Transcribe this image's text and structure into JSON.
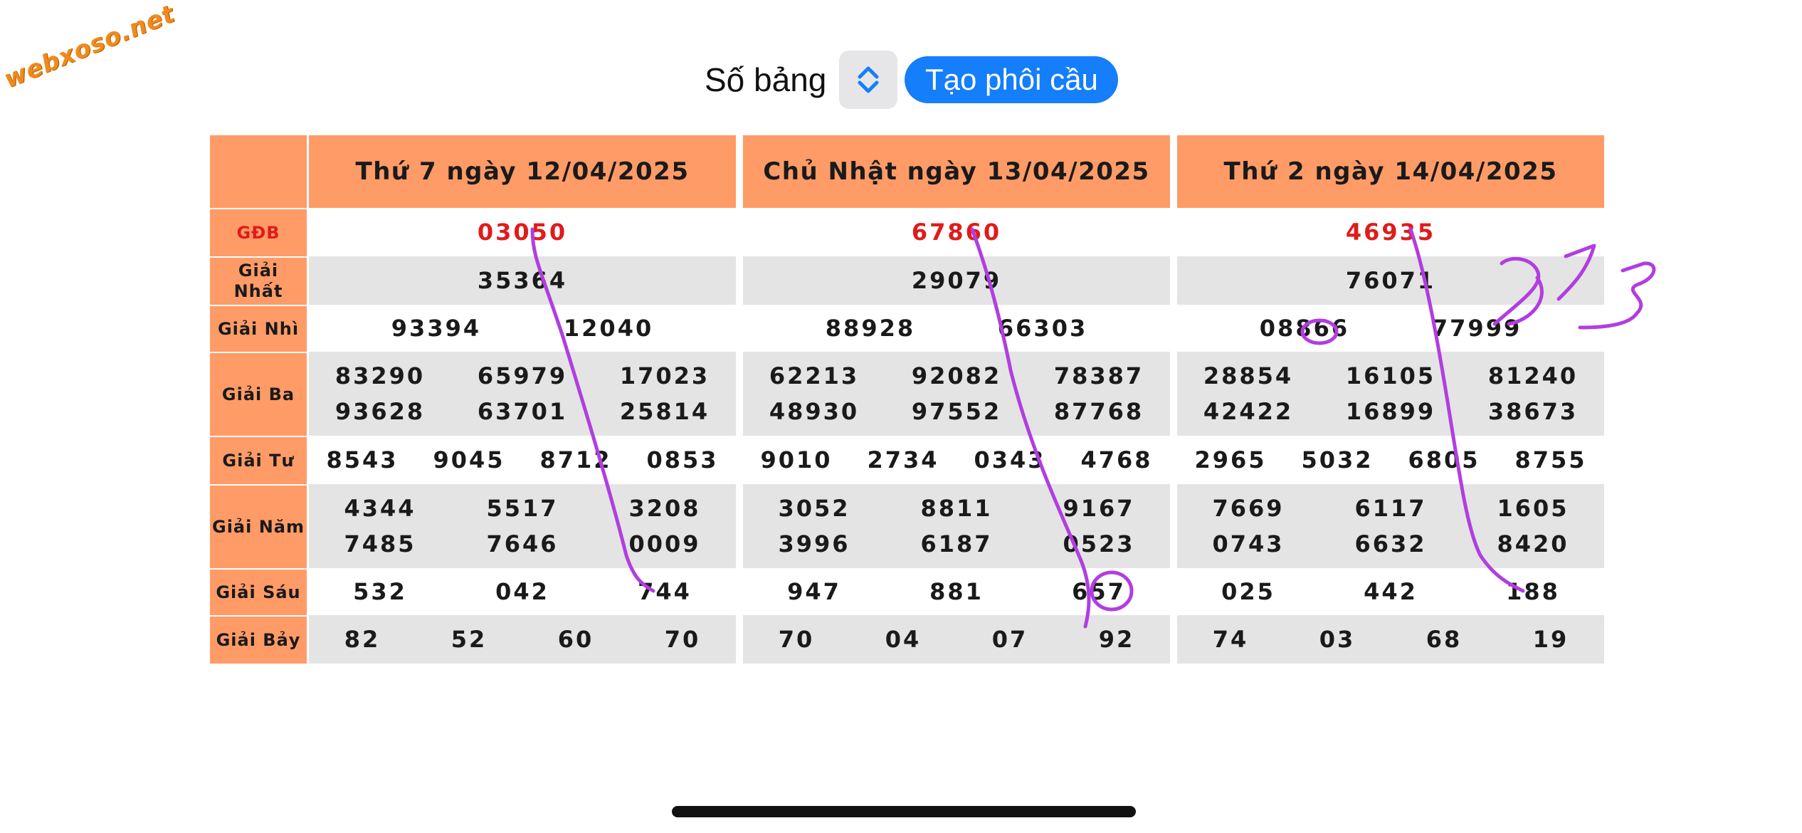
{
  "watermark": "webxoso.net",
  "controls": {
    "table_count_label": "Số bảng",
    "create_button_label": "Tạo phôi cầu"
  },
  "row_labels": [
    {
      "text": "GĐB"
    },
    {
      "text": "Giải\nNhất"
    },
    {
      "text": "Giải Nhì"
    },
    {
      "text": "Giải Ba"
    },
    {
      "text": "Giải Tư"
    },
    {
      "text": "Giải Năm"
    },
    {
      "text": "Giải Sáu"
    },
    {
      "text": "Giải Bảy"
    }
  ],
  "days": [
    {
      "title": "Thứ 7 ngày 12/04/2025",
      "gdb": [
        "03050"
      ],
      "nhat": [
        "35364"
      ],
      "nhi": [
        "93394",
        "12040"
      ],
      "ba": [
        [
          "83290",
          "65979",
          "17023"
        ],
        [
          "93628",
          "63701",
          "25814"
        ]
      ],
      "tu": [
        "8543",
        "9045",
        "8712",
        "0853"
      ],
      "nam": [
        [
          "4344",
          "5517",
          "3208"
        ],
        [
          "7485",
          "7646",
          "0009"
        ]
      ],
      "sau": [
        "532",
        "042",
        "744"
      ],
      "bay": [
        "82",
        "52",
        "60",
        "70"
      ]
    },
    {
      "title": "Chủ Nhật ngày 13/04/2025",
      "gdb": [
        "67860"
      ],
      "nhat": [
        "29079"
      ],
      "nhi": [
        "88928",
        "66303"
      ],
      "ba": [
        [
          "62213",
          "92082",
          "78387"
        ],
        [
          "48930",
          "97552",
          "87768"
        ]
      ],
      "tu": [
        "9010",
        "2734",
        "0343",
        "4768"
      ],
      "nam": [
        [
          "3052",
          "8811",
          "9167"
        ],
        [
          "3996",
          "6187",
          "0523"
        ]
      ],
      "sau": [
        "947",
        "881",
        "657"
      ],
      "bay": [
        "70",
        "04",
        "07",
        "92"
      ]
    },
    {
      "title": "Thứ 2 ngày 14/04/2025",
      "gdb": [
        "46935"
      ],
      "nhat": [
        "76071"
      ],
      "nhi": [
        "08866",
        "77999"
      ],
      "ba": [
        [
          "28854",
          "16105",
          "81240"
        ],
        [
          "42422",
          "16899",
          "38673"
        ]
      ],
      "tu": [
        "2965",
        "5032",
        "6805",
        "8755"
      ],
      "nam": [
        [
          "7669",
          "6117",
          "1605"
        ],
        [
          "0743",
          "6632",
          "8420"
        ]
      ],
      "sau": [
        "025",
        "442",
        "188"
      ],
      "bay": [
        "74",
        "03",
        "68",
        "19"
      ]
    }
  ],
  "handwritten_note": "373",
  "colors": {
    "header_bg": "#ff9b66",
    "special_red": "#e01b1b",
    "button_blue": "#147efb",
    "stripe_grey": "#e4e4e4",
    "annotation_purple": "#b13ee0"
  }
}
